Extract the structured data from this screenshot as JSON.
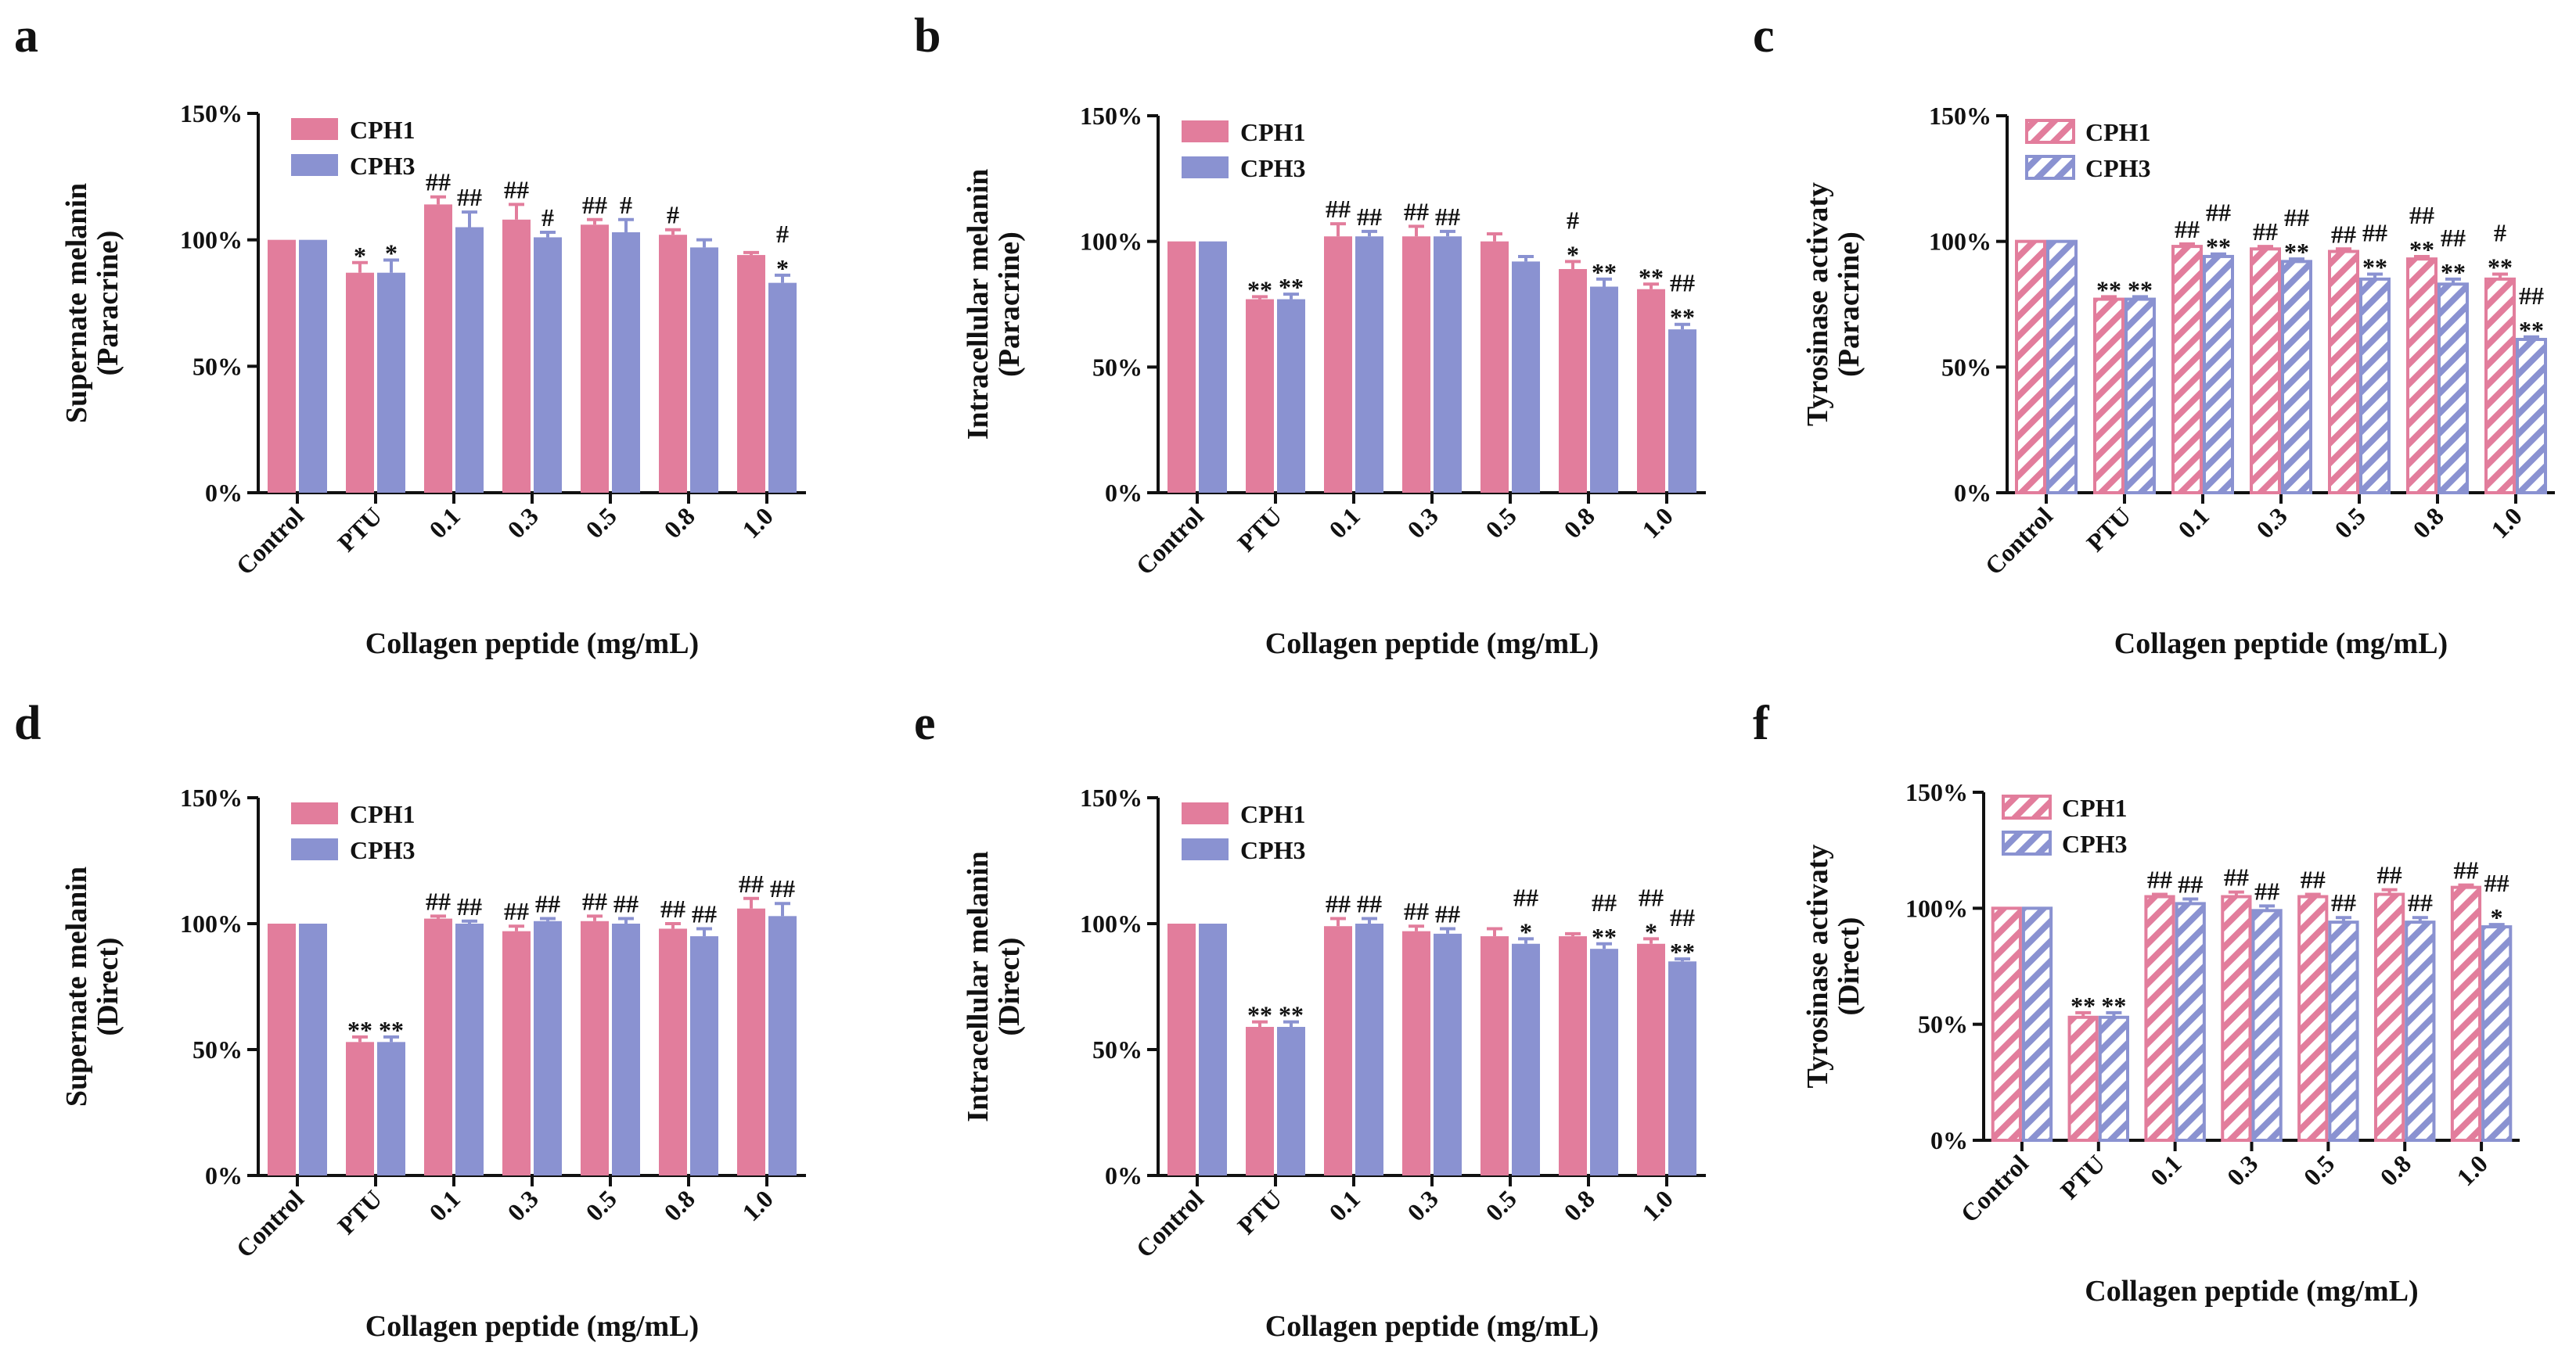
{
  "colors": {
    "cph1": "#E27D9C",
    "cph3": "#8A92D1",
    "axis": "#111111"
  },
  "chart_data": [
    {
      "panel": "a",
      "type": "bar",
      "title": "",
      "xlabel": "Collagen peptide  (mg/mL)",
      "ylabel": [
        "Supernate melanin",
        "(Paracrine)"
      ],
      "ylim": [
        0,
        150
      ],
      "yticks": [
        "0%",
        "50%",
        "100%",
        "150%"
      ],
      "pattern": "solid",
      "categories": [
        "Control",
        "PTU",
        "0.1",
        "0.3",
        "0.5",
        "0.8",
        "1.0"
      ],
      "series": [
        {
          "name": "CPH1",
          "values": [
            100,
            87,
            114,
            108,
            106,
            102,
            94
          ],
          "errors": [
            0,
            4,
            3,
            6,
            2,
            2,
            1
          ],
          "annotations": [
            "",
            "*",
            "##",
            "##",
            "##",
            "#",
            ""
          ]
        },
        {
          "name": "CPH3",
          "values": [
            100,
            87,
            105,
            101,
            103,
            97,
            83
          ],
          "errors": [
            0,
            5,
            6,
            2,
            5,
            3,
            3
          ],
          "annotations": [
            "",
            "*",
            "##",
            "#",
            "#",
            "",
            "#|*"
          ]
        }
      ]
    },
    {
      "panel": "b",
      "type": "bar",
      "title": "",
      "xlabel": "Collagen peptide  (mg/mL)",
      "ylabel": [
        "Intracellular melanin",
        "(Paracrine)"
      ],
      "ylim": [
        0,
        150
      ],
      "yticks": [
        "0%",
        "50%",
        "100%",
        "150%"
      ],
      "pattern": "solid",
      "categories": [
        "Control",
        "PTU",
        "0.1",
        "0.3",
        "0.5",
        "0.8",
        "1.0"
      ],
      "series": [
        {
          "name": "CPH1",
          "values": [
            100,
            77,
            102,
            102,
            100,
            89,
            81
          ],
          "errors": [
            0,
            1,
            5,
            4,
            3,
            3,
            2
          ],
          "annotations": [
            "",
            "**",
            "##",
            "##",
            "",
            "#|*",
            "**"
          ]
        },
        {
          "name": "CPH3",
          "values": [
            100,
            77,
            102,
            102,
            92,
            82,
            65
          ],
          "errors": [
            0,
            2,
            2,
            2,
            2,
            3,
            2
          ],
          "annotations": [
            "",
            "**",
            "##",
            "##",
            "",
            "**",
            "##|**"
          ]
        }
      ]
    },
    {
      "panel": "c",
      "type": "bar",
      "title": "",
      "xlabel": "Collagen peptide  (mg/mL)",
      "ylabel": [
        "Tyrosinase activaty",
        "(Paracrine)"
      ],
      "ylim": [
        0,
        150
      ],
      "yticks": [
        "0%",
        "50%",
        "100%",
        "150%"
      ],
      "pattern": "hatched",
      "categories": [
        "Control",
        "PTU",
        "0.1",
        "0.3",
        "0.5",
        "0.8",
        "1.0"
      ],
      "series": [
        {
          "name": "CPH1",
          "values": [
            100,
            77,
            98,
            97,
            96,
            93,
            85
          ],
          "errors": [
            0,
            1,
            1,
            1,
            1,
            1,
            2
          ],
          "annotations": [
            "",
            "**",
            "##",
            "##",
            "##",
            "##|**",
            "#|**"
          ]
        },
        {
          "name": "CPH3",
          "values": [
            100,
            77,
            94,
            92,
            85,
            83,
            61
          ],
          "errors": [
            0,
            1,
            1,
            1,
            2,
            2,
            1
          ],
          "annotations": [
            "",
            "**",
            "##|**",
            "##|**",
            "##|**",
            "##|**",
            "##|**"
          ]
        }
      ]
    },
    {
      "panel": "d",
      "type": "bar",
      "title": "",
      "xlabel": "Collagen peptide  (mg/mL)",
      "ylabel": [
        "Supernate melanin",
        "(Direct)"
      ],
      "ylim": [
        0,
        150
      ],
      "yticks": [
        "0%",
        "50%",
        "100%",
        "150%"
      ],
      "pattern": "solid",
      "categories": [
        "Control",
        "PTU",
        "0.1",
        "0.3",
        "0.5",
        "0.8",
        "1.0"
      ],
      "series": [
        {
          "name": "CPH1",
          "values": [
            100,
            53,
            102,
            97,
            101,
            98,
            106
          ],
          "errors": [
            0,
            2,
            1,
            2,
            2,
            2,
            4
          ],
          "annotations": [
            "",
            "**",
            "##",
            "##",
            "##",
            "##",
            "##"
          ]
        },
        {
          "name": "CPH3",
          "values": [
            100,
            53,
            100,
            101,
            100,
            95,
            103
          ],
          "errors": [
            0,
            2,
            1,
            1,
            2,
            3,
            5
          ],
          "annotations": [
            "",
            "**",
            "##",
            "##",
            "##",
            "##",
            "##"
          ]
        }
      ]
    },
    {
      "panel": "e",
      "type": "bar",
      "title": "",
      "xlabel": "Collagen peptide  (mg/mL)",
      "ylabel": [
        "Intracellular melanin",
        "(Direct)"
      ],
      "ylim": [
        0,
        150
      ],
      "yticks": [
        "0%",
        "50%",
        "100%",
        "150%"
      ],
      "pattern": "solid",
      "categories": [
        "Control",
        "PTU",
        "0.1",
        "0.3",
        "0.5",
        "0.8",
        "1.0"
      ],
      "series": [
        {
          "name": "CPH1",
          "values": [
            100,
            59,
            99,
            97,
            95,
            95,
            92
          ],
          "errors": [
            0,
            2,
            3,
            2,
            3,
            1,
            2
          ],
          "annotations": [
            "",
            "**",
            "##",
            "##",
            "",
            "",
            "##|*"
          ]
        },
        {
          "name": "CPH3",
          "values": [
            100,
            59,
            100,
            96,
            92,
            90,
            85
          ],
          "errors": [
            0,
            2,
            2,
            2,
            2,
            2,
            1
          ],
          "annotations": [
            "",
            "**",
            "##",
            "##",
            "##|*",
            "##|**",
            "##|**"
          ]
        }
      ]
    },
    {
      "panel": "f",
      "type": "bar",
      "title": "",
      "xlabel": "Collagen peptide  (mg/mL)",
      "ylabel": [
        "Tyrosinase activaty",
        "(Direct)"
      ],
      "ylim": [
        0,
        150
      ],
      "yticks": [
        "0%",
        "50%",
        "100%",
        "150%"
      ],
      "pattern": "hatched",
      "categories": [
        "Control",
        "PTU",
        "0.1",
        "0.3",
        "0.5",
        "0.8",
        "1.0"
      ],
      "series": [
        {
          "name": "CPH1",
          "values": [
            100,
            53,
            105,
            105,
            105,
            106,
            109
          ],
          "errors": [
            0,
            2,
            1,
            2,
            1,
            2,
            1
          ],
          "annotations": [
            "",
            "**",
            "##",
            "##",
            "##",
            "##",
            "##"
          ]
        },
        {
          "name": "CPH3",
          "values": [
            100,
            53,
            102,
            99,
            94,
            94,
            92
          ],
          "errors": [
            0,
            2,
            2,
            2,
            2,
            2,
            1
          ],
          "annotations": [
            "",
            "**",
            "##",
            "##",
            "##",
            "##",
            "##|*"
          ]
        }
      ]
    }
  ]
}
